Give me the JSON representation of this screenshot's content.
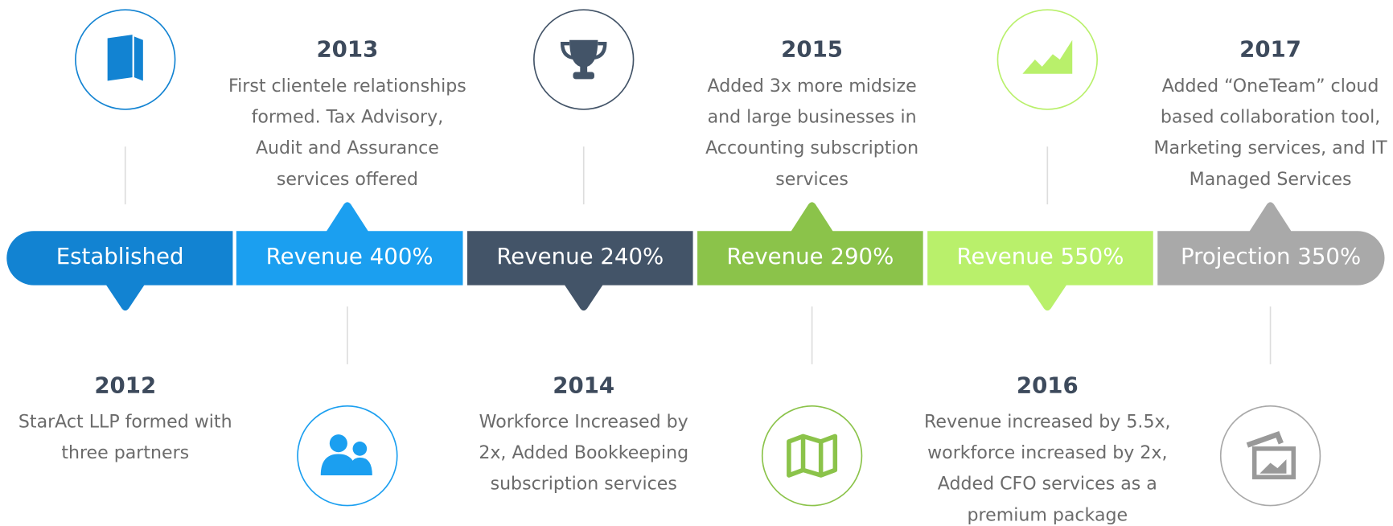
{
  "milestones": [
    {
      "label": "Established",
      "year": "2012",
      "description": [
        "StarAct LLP formed with",
        "three partners"
      ],
      "color": "#1283d2"
    },
    {
      "label": "Revenue 400%",
      "year": "2013",
      "description": [
        "First clientele relationships",
        "formed. Tax Advisory,",
        "Audit and Assurance",
        "services offered"
      ],
      "color": "#1b9ff0"
    },
    {
      "label": "Revenue  240%",
      "year": "2014",
      "description": [
        "Workforce Increased by",
        "2x, Added Bookkeeping",
        "subscription services"
      ],
      "color": "#435468"
    },
    {
      "label": "Revenue  290%",
      "year": "2015",
      "description": [
        "Added 3x more midsize",
        "and large businesses in",
        "Accounting subscription",
        "services"
      ],
      "color": "#8bc34a"
    },
    {
      "label": "Revenue 550%",
      "year": "2016",
      "description": [
        "Revenue increased by 5.5x,",
        "workforce increased by 2x,",
        "Added CFO services as a",
        "premium package"
      ],
      "color": "#b9f06b"
    },
    {
      "label": "Projection 350%",
      "year": "2017",
      "description": [
        "Added “OneTeam” cloud",
        "based collaboration tool,",
        "Marketing services, and IT",
        "Managed Services"
      ],
      "color": "#a9a9a9"
    }
  ]
}
